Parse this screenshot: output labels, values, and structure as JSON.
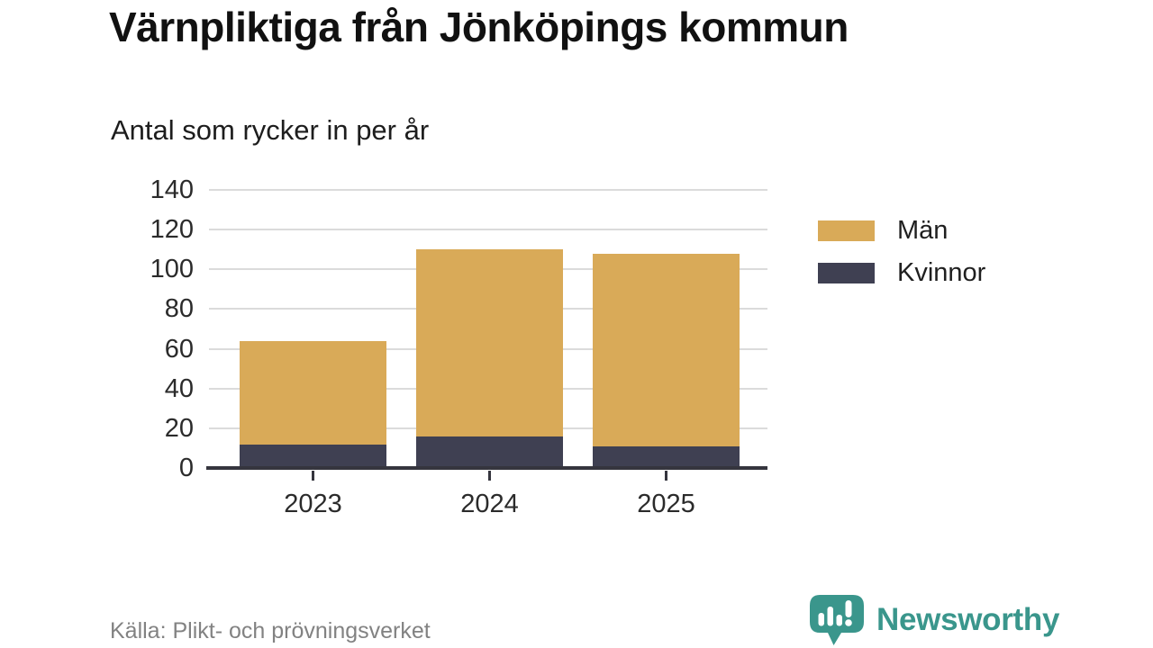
{
  "chart_data": {
    "type": "bar",
    "stacked": true,
    "title": "Värnpliktiga från Jönköpings kommun",
    "subtitle": "Antal som rycker in per år",
    "categories": [
      "2023",
      "2024",
      "2025"
    ],
    "series": [
      {
        "name": "Män",
        "color": "#D9AA58",
        "values": [
          52,
          94,
          97
        ]
      },
      {
        "name": "Kvinnor",
        "color": "#3F4052",
        "values": [
          12,
          16,
          11
        ]
      }
    ],
    "stack_order_bottom_to_top": [
      "Kvinnor",
      "Män"
    ],
    "totals": [
      64,
      110,
      108
    ],
    "ylim": [
      0,
      140
    ],
    "yticks": [
      0,
      20,
      40,
      60,
      80,
      100,
      120,
      140
    ],
    "grid": "horizontal",
    "legend_position": "right"
  },
  "footer": {
    "source": "Källa: Plikt- och prövningsverket",
    "brand": "Newsworthy"
  },
  "colors": {
    "axis": "#35353E",
    "grid": "#DBDBDB",
    "brand_teal": "#3A968C",
    "source_text": "#828282"
  }
}
